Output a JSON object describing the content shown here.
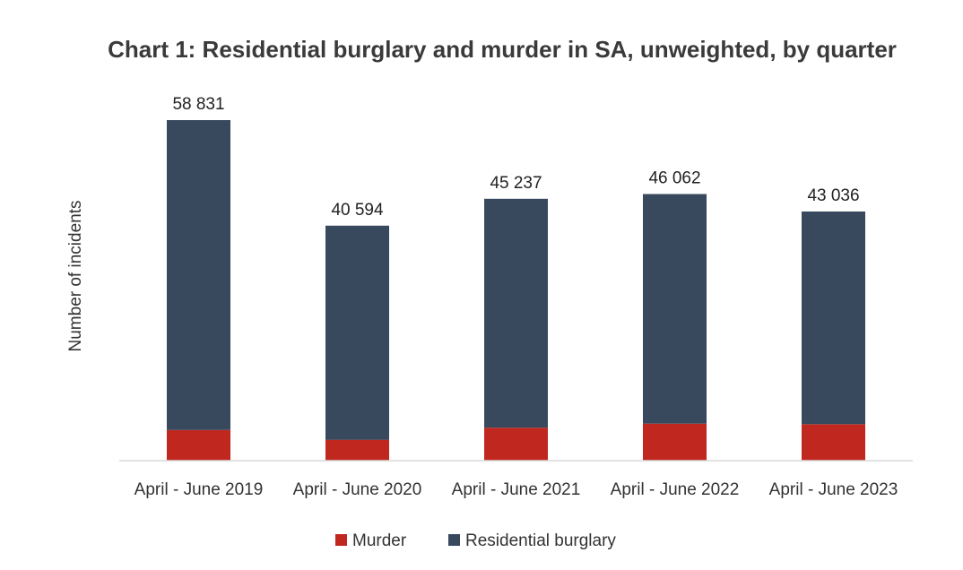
{
  "chart_data": {
    "type": "bar",
    "stacked": true,
    "title": "Chart 1: Residential burglary and murder in SA, unweighted, by quarter",
    "xlabel": "",
    "ylabel": "Number of incidents",
    "categories": [
      "April - June 2019",
      "April - June 2020",
      "April - June 2021",
      "April - June 2022",
      "April - June 2023"
    ],
    "series": [
      {
        "name": "Murder",
        "color": "#c0281f",
        "values": [
          5300,
          3600,
          5700,
          6400,
          6300
        ]
      },
      {
        "name": "Residential burglary",
        "color": "#38495e",
        "values": [
          53531,
          36994,
          39537,
          39662,
          36736
        ]
      }
    ],
    "totals": [
      58831,
      40594,
      45237,
      46062,
      43036
    ],
    "total_labels": [
      "58 831",
      "40 594",
      "45 237",
      "46 062",
      "43 036"
    ],
    "ylim": [
      0,
      60000
    ],
    "grid": false,
    "legend_position": "bottom"
  }
}
